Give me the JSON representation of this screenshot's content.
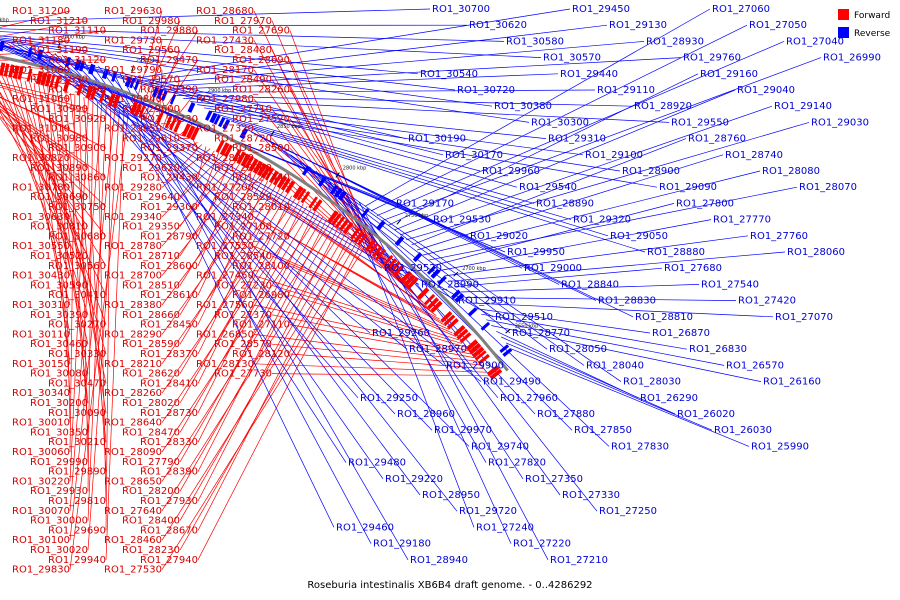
{
  "caption": "Roseburia intestinalis XB6B4 draft genome. - 0..4286292",
  "legend": [
    {
      "label": "Forward",
      "color": "#ff0000"
    },
    {
      "label": "Reverse",
      "color": "#0000ff"
    }
  ],
  "colors": {
    "forward": "#ff0000",
    "reverse": "#0000ff",
    "forward_text": "#d40000",
    "reverse_text": "#0000d4",
    "backbone": "#808080"
  },
  "ticks": [
    "3100 kbp",
    "3050 kbp",
    "3000 kbp",
    "2950 kbp",
    "2900 kbp",
    "2850 kbp",
    "2800 kbp",
    "2750 kbp",
    "2700 kbp",
    "2650 kbp"
  ],
  "forward_labels": [
    "RO1_31200",
    "RO1_31210",
    "RO1_31110",
    "RO1_31180",
    "RO1_31190",
    "RO1_31120",
    "RO1_31080",
    "RO1_31030",
    "RO1_31090",
    "RO1_31060",
    "RO1_30990",
    "RO1_30920",
    "RO1_31010",
    "RO1_30980",
    "RO1_30900",
    "RO1_30820",
    "RO1_30890",
    "RO1_30860",
    "RO1_30780",
    "RO1_30690",
    "RO1_30750",
    "RO1_30630",
    "RO1_30810",
    "RO1_30680",
    "RO1_30550",
    "RO1_30520",
    "RO1_30560",
    "RO1_30430",
    "RO1_30590",
    "RO1_30410",
    "RO1_30310",
    "RO1_30390",
    "RO1_30270",
    "RO1_30110",
    "RO1_30460",
    "RO1_30330",
    "RO1_30150",
    "RO1_30080",
    "RO1_30470",
    "RO1_30340",
    "RO1_30200",
    "RO1_30090",
    "RO1_30010",
    "RO1_30350",
    "RO1_30210",
    "RO1_30060",
    "RO1_29990",
    "RO1_29890",
    "RO1_30220",
    "RO1_29930",
    "RO1_29810",
    "RO1_30070",
    "RO1_30000",
    "RO1_29690",
    "RO1_30100",
    "RO1_30020",
    "RO1_29940",
    "RO1_29830",
    "RO1_29630",
    "RO1_29980",
    "RO1_29880",
    "RO1_29730",
    "RO1_29560",
    "RO1_29470",
    "RO1_29790",
    "RO1_29570",
    "RO1_29390",
    "RO1_29840",
    "RO1_29600",
    "RO1_29330",
    "RO1_29850",
    "RO1_29610",
    "RO1_29370",
    "RO1_29270",
    "RO1_29620",
    "RO1_29430",
    "RO1_29280",
    "RO1_29640",
    "RO1_29300",
    "RO1_29340",
    "RO1_29350",
    "RO1_28790",
    "RO1_28780",
    "RO1_28710",
    "RO1_28600",
    "RO1_28700",
    "RO1_28510",
    "RO1_28610",
    "RO1_28380",
    "RO1_28660",
    "RO1_28450",
    "RO1_28290",
    "RO1_28590",
    "RO1_28370",
    "RO1_28210",
    "RO1_28620",
    "RO1_28410",
    "RO1_28260",
    "RO1_28020",
    "RO1_28730",
    "RO1_28640",
    "RO1_28470",
    "RO1_28330",
    "RO1_28090",
    "RO1_27790",
    "RO1_28390",
    "RO1_28650",
    "RO1_28200",
    "RO1_27930",
    "RO1_27640",
    "RO1_28400",
    "RO1_28670",
    "RO1_28460",
    "RO1_28230",
    "RO1_27940",
    "RO1_27530",
    "RO1_28680",
    "RO1_27970",
    "RO1_27690",
    "RO1_27430",
    "RO1_28480",
    "RO1_28690",
    "RO1_28170",
    "RO1_28490",
    "RO1_28260",
    "RO1_27980",
    "RO1_27710",
    "RO1_27520",
    "RO1_27320",
    "RO1_28720",
    "RO1_28500",
    "RO1_28270",
    "RO1_28000",
    "RO1_27440",
    "RO1_27200",
    "RO1_28520",
    "RO1_28010",
    "RO1_27340",
    "RO1_27100",
    "RO1_27720",
    "RO1_27550",
    "RO1_28540",
    "RO1_28100",
    "RO1_27450",
    "RO1_27230",
    "RO1_26980",
    "RO1_27560",
    "RO1_27370",
    "RO1_27110",
    "RO1_26850",
    "RO1_28570",
    "RO1_28120",
    "RO1_28130",
    "RO1_27730"
  ],
  "reverse_labels": [
    "RO1_30700",
    "RO1_30620",
    "RO1_30580",
    "RO1_30570",
    "RO1_30540",
    "RO1_30720",
    "RO1_30380",
    "RO1_30300",
    "RO1_30190",
    "RO1_30170",
    "RO1_29960",
    "RO1_29540",
    "RO1_29170",
    "RO1_29530",
    "RO1_29020",
    "RO1_29950",
    "RO1_29520",
    "RO1_28990",
    "RO1_29910",
    "RO1_29510",
    "RO1_29260",
    "RO1_28970",
    "RO1_29900",
    "RO1_29490",
    "RO1_29250",
    "RO1_28960",
    "RO1_29970",
    "RO1_29740",
    "RO1_29480",
    "RO1_29220",
    "RO1_28950",
    "RO1_29720",
    "RO1_29460",
    "RO1_29180",
    "RO1_28940",
    "RO1_29450",
    "RO1_29130",
    "RO1_28930",
    "RO1_29760",
    "RO1_29440",
    "RO1_29110",
    "RO1_28920",
    "RO1_29550",
    "RO1_29310",
    "RO1_29100",
    "RO1_28900",
    "RO1_29090",
    "RO1_28890",
    "RO1_29320",
    "RO1_29050",
    "RO1_28880",
    "RO1_29000",
    "RO1_28840",
    "RO1_28830",
    "RO1_28810",
    "RO1_28770",
    "RO1_28050",
    "RO1_28040",
    "RO1_28030",
    "RO1_27960",
    "RO1_27880",
    "RO1_27850",
    "RO1_27830",
    "RO1_27820",
    "RO1_27350",
    "RO1_27330",
    "RO1_27250",
    "RO1_27240",
    "RO1_27220",
    "RO1_27210",
    "RO1_27060",
    "RO1_27050",
    "RO1_27040",
    "RO1_26990",
    "RO1_29160",
    "RO1_29040",
    "RO1_29140",
    "RO1_29030",
    "RO1_28760",
    "RO1_28740",
    "RO1_28080",
    "RO1_28070",
    "RO1_27800",
    "RO1_27770",
    "RO1_27760",
    "RO1_28060",
    "RO1_27680",
    "RO1_27540",
    "RO1_27420",
    "RO1_27070",
    "RO1_26870",
    "RO1_26830",
    "RO1_26570",
    "RO1_26160",
    "RO1_26290",
    "RO1_26020",
    "RO1_26030",
    "RO1_25990"
  ]
}
